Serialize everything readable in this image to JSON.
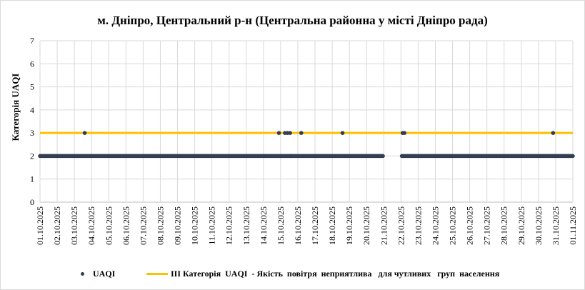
{
  "chart_data": {
    "type": "scatter",
    "title": "м. Дніпро, Центральний р-н (Центральна районна у місті Дніпро рада)",
    "ylabel": "Категорія UAQI",
    "xlabel": "",
    "ylim": [
      0,
      7
    ],
    "yticks": [
      "0",
      "1",
      "2",
      "3",
      "4",
      "5",
      "6",
      "7"
    ],
    "x_tick_labels": [
      "01.10.2025",
      "02.10.2025",
      "03.10.2025",
      "04.10.2025",
      "05.10.2025",
      "06.10.2025",
      "07.10.2025",
      "08.10.2025",
      "09.10.2025",
      "10.10.2025",
      "11.10.2025",
      "12.10.2025",
      "13.10.2025",
      "14.10.2025",
      "15.10.2025",
      "16.10.2025",
      "17.10.2025",
      "18.10.2025",
      "19.10.2025",
      "20.10.2025",
      "21.10.2025",
      "22.10.2025",
      "23.10.2025",
      "24.10.2025",
      "25.10.2025",
      "26.10.2025",
      "27.10.2025",
      "28.10.2025",
      "29.10.2025",
      "30.10.2025",
      "31.10.2025",
      "01.11.2025"
    ],
    "x_range_days": [
      0,
      31
    ],
    "grid": true,
    "legend_position": "bottom",
    "series": [
      {
        "name": "UAQI",
        "color": "#333f50",
        "kind": "scatter",
        "baseline_value": 2,
        "baseline_segments_days": [
          [
            0,
            19.95
          ],
          [
            21.05,
            31
          ]
        ],
        "points_days": [
          [
            2.6,
            3
          ],
          [
            13.9,
            3
          ],
          [
            14.25,
            3
          ],
          [
            14.4,
            3
          ],
          [
            14.55,
            3
          ],
          [
            14.6,
            2
          ],
          [
            15.2,
            3
          ],
          [
            17.6,
            3
          ],
          [
            21.1,
            3
          ],
          [
            21.2,
            3
          ],
          [
            29.85,
            3
          ]
        ]
      },
      {
        "name": "ІІІ Категорія  UAQI  - Якість  повітря  неприятлива   для чутливих   груп  населення",
        "color": "#ffc000",
        "kind": "line",
        "value": 3
      }
    ]
  }
}
